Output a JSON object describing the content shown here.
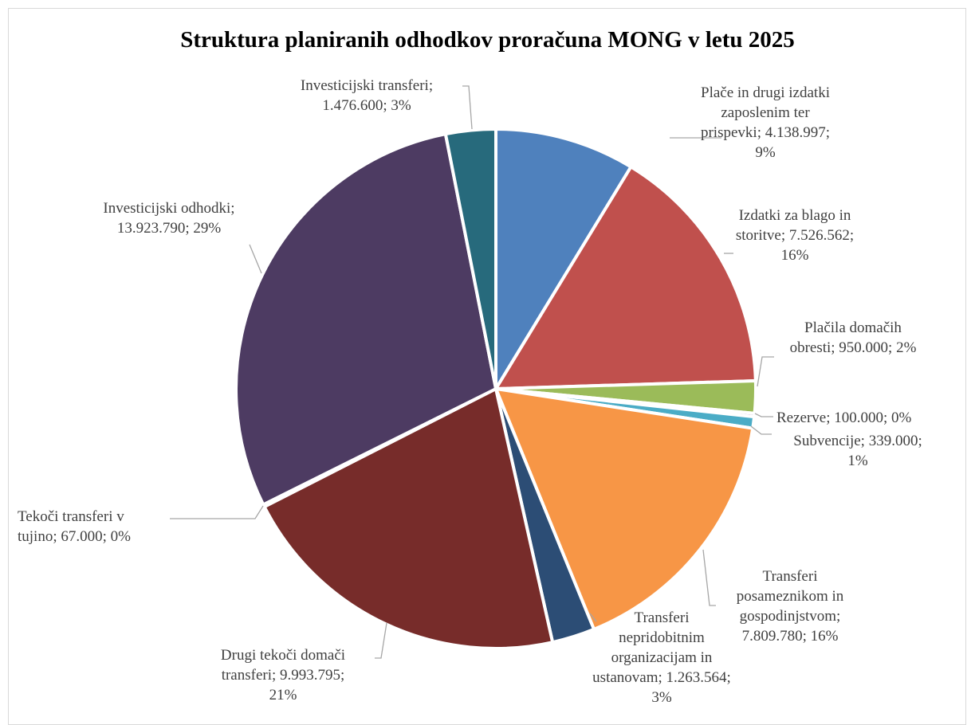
{
  "chart_data": {
    "type": "pie",
    "title": "Struktura planiranih odhodkov proračuna MONG v letu 2025",
    "slices": [
      {
        "label": "Plače in drugi izdatki zaposlenim ter prispevki; 4.138.997; 9%",
        "name": "Plače in drugi izdatki zaposlenim ter prispevki",
        "value": 4138997,
        "percent": "9%",
        "color": "#4F81BD"
      },
      {
        "label": "Izdatki za blago in storitve; 7.526.562; 16%",
        "name": "Izdatki za blago in storitve",
        "value": 7526562,
        "percent": "16%",
        "color": "#C0504D"
      },
      {
        "label": "Plačila domačih obresti; 950.000; 2%",
        "name": "Plačila domačih obresti",
        "value": 950000,
        "percent": "2%",
        "color": "#9BBB59"
      },
      {
        "label": "Rezerve; 100.000; 0%",
        "name": "Rezerve",
        "value": 100000,
        "percent": "0%",
        "color": "#8064A2"
      },
      {
        "label": "Subvencije; 339.000; 1%",
        "name": "Subvencije",
        "value": 339000,
        "percent": "1%",
        "color": "#4BACC6"
      },
      {
        "label": "Transferi posameznikom in gospodinjstvom; 7.809.780; 16%",
        "name": "Transferi posameznikom in gospodinjstvom",
        "value": 7809780,
        "percent": "16%",
        "color": "#F79646"
      },
      {
        "label": "Transferi nepridobitnim organizacijam in ustanovam; 1.263.564; 3%",
        "name": "Transferi nepridobitnim organizacijam in ustanovam",
        "value": 1263564,
        "percent": "3%",
        "color": "#2C4D75"
      },
      {
        "label": "Drugi tekoči domači transferi; 9.993.795; 21%",
        "name": "Drugi tekoči domači transferi",
        "value": 9993795,
        "percent": "21%",
        "color": "#772C2A"
      },
      {
        "label": "Tekoči transferi v tujino; 67.000; 0%",
        "name": "Tekoči transferi v tujino",
        "value": 67000,
        "percent": "0%",
        "color": "#5F7530"
      },
      {
        "label": "Investicijski odhodki; 13.923.790; 29%",
        "name": "Investicijski odhodki",
        "value": 13923790,
        "percent": "29%",
        "color": "#4D3B62"
      },
      {
        "label": "Investicijski transferi; 1.476.600; 3%",
        "name": "Investicijski transferi",
        "value": 1476600,
        "percent": "3%",
        "color": "#276A7C"
      }
    ]
  }
}
